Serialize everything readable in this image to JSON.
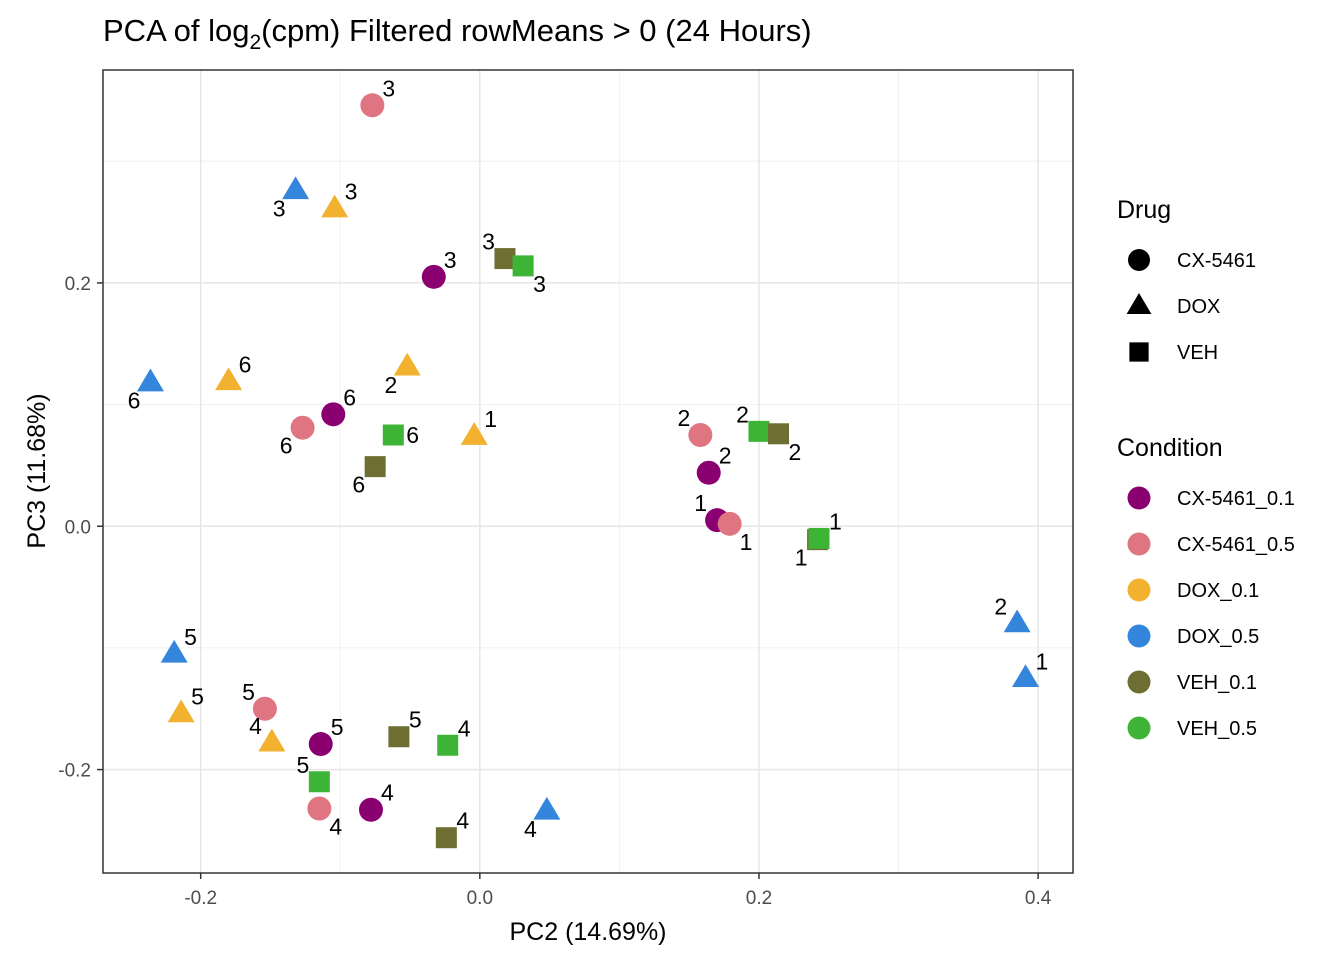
{
  "chart_data": {
    "type": "scatter",
    "title": {
      "main": "PCA of log",
      "sub": "2",
      "rest": "(cpm) Filtered rowMeans > 0 (24 Hours)"
    },
    "xlabel": "PC2 (14.69%)",
    "ylabel": "PC3 (11.68%)",
    "xlim": [
      -0.27,
      0.425
    ],
    "ylim": [
      -0.285,
      0.375
    ],
    "x_ticks": [
      -0.2,
      0.0,
      0.2,
      0.4
    ],
    "x_tick_labels": [
      "-0.2",
      "0.0",
      "0.2",
      "0.4"
    ],
    "y_ticks": [
      -0.2,
      0.0,
      0.2
    ],
    "y_tick_labels": [
      "-0.2",
      "0.0",
      "0.2"
    ],
    "x_minor": [
      -0.1,
      0.1,
      0.3
    ],
    "y_minor": [
      -0.1,
      0.1,
      0.3
    ],
    "grid": true,
    "legend_placement": "right",
    "drug_legend": {
      "title": "Drug",
      "items": [
        {
          "label": "CX-5461",
          "shape": "circle"
        },
        {
          "label": "DOX",
          "shape": "triangle"
        },
        {
          "label": "VEH",
          "shape": "square"
        }
      ]
    },
    "condition_legend": {
      "title": "Condition",
      "items": [
        {
          "label": "CX-5461_0.1",
          "color": "#8B0071"
        },
        {
          "label": "CX-5461_0.5",
          "color": "#E07582"
        },
        {
          "label": "DOX_0.1",
          "color": "#F2B12F"
        },
        {
          "label": "DOX_0.5",
          "color": "#3486DD"
        },
        {
          "label": "VEH_0.1",
          "color": "#6E6E33"
        },
        {
          "label": "VEH_0.5",
          "color": "#3DB436"
        }
      ]
    },
    "points": [
      {
        "x": -0.077,
        "y": 0.346,
        "drug": "CX-5461",
        "condition": "CX-5461_0.5",
        "label": "3",
        "pos": "ur"
      },
      {
        "x": -0.132,
        "y": 0.276,
        "drug": "DOX",
        "condition": "DOX_0.5",
        "label": "3",
        "pos": "ll"
      },
      {
        "x": -0.104,
        "y": 0.261,
        "drug": "DOX",
        "condition": "DOX_0.1",
        "label": "3",
        "pos": "ur"
      },
      {
        "x": -0.033,
        "y": 0.205,
        "drug": "CX-5461",
        "condition": "CX-5461_0.1",
        "label": "3",
        "pos": "ur"
      },
      {
        "x": 0.018,
        "y": 0.22,
        "drug": "VEH",
        "condition": "VEH_0.1",
        "label": "3",
        "pos": "ul"
      },
      {
        "x": 0.031,
        "y": 0.214,
        "drug": "VEH",
        "condition": "VEH_0.5",
        "label": "3",
        "pos": "lr"
      },
      {
        "x": -0.236,
        "y": 0.118,
        "drug": "DOX",
        "condition": "DOX_0.5",
        "label": "6",
        "pos": "ll"
      },
      {
        "x": -0.18,
        "y": 0.119,
        "drug": "DOX",
        "condition": "DOX_0.1",
        "label": "6",
        "pos": "ur"
      },
      {
        "x": -0.052,
        "y": 0.131,
        "drug": "DOX",
        "condition": "DOX_0.1",
        "label": "2",
        "pos": "ll"
      },
      {
        "x": -0.105,
        "y": 0.092,
        "drug": "CX-5461",
        "condition": "CX-5461_0.1",
        "label": "6",
        "pos": "ur"
      },
      {
        "x": -0.127,
        "y": 0.081,
        "drug": "CX-5461",
        "condition": "CX-5461_0.5",
        "label": "6",
        "pos": "ll"
      },
      {
        "x": -0.062,
        "y": 0.075,
        "drug": "VEH",
        "condition": "VEH_0.5",
        "label": "6",
        "pos": "r"
      },
      {
        "x": -0.075,
        "y": 0.049,
        "drug": "VEH",
        "condition": "VEH_0.1",
        "label": "6",
        "pos": "ll"
      },
      {
        "x": -0.004,
        "y": 0.074,
        "drug": "DOX",
        "condition": "DOX_0.1",
        "label": "1",
        "pos": "ur"
      },
      {
        "x": 0.158,
        "y": 0.075,
        "drug": "CX-5461",
        "condition": "CX-5461_0.5",
        "label": "2",
        "pos": "ul"
      },
      {
        "x": 0.2,
        "y": 0.078,
        "drug": "VEH",
        "condition": "VEH_0.5",
        "label": "2",
        "pos": "ul"
      },
      {
        "x": 0.214,
        "y": 0.076,
        "drug": "VEH",
        "condition": "VEH_0.1",
        "label": "2",
        "pos": "lr"
      },
      {
        "x": 0.164,
        "y": 0.044,
        "drug": "CX-5461",
        "condition": "CX-5461_0.1",
        "label": "2",
        "pos": "ur"
      },
      {
        "x": 0.17,
        "y": 0.005,
        "drug": "CX-5461",
        "condition": "CX-5461_0.1",
        "label": "1",
        "pos": "ul"
      },
      {
        "x": 0.179,
        "y": 0.002,
        "drug": "CX-5461",
        "condition": "CX-5461_0.5",
        "label": "1",
        "pos": "lr"
      },
      {
        "x": 0.242,
        "y": -0.011,
        "drug": "VEH",
        "condition": "VEH_0.1",
        "label": "1",
        "pos": "ll"
      },
      {
        "x": 0.243,
        "y": -0.01,
        "drug": "VEH",
        "condition": "VEH_0.5",
        "label": "1",
        "pos": "ur"
      },
      {
        "x": 0.385,
        "y": -0.08,
        "drug": "DOX",
        "condition": "DOX_0.5",
        "label": "2",
        "pos": "ul"
      },
      {
        "x": 0.391,
        "y": -0.125,
        "drug": "DOX",
        "condition": "DOX_0.5",
        "label": "1",
        "pos": "ur"
      },
      {
        "x": -0.219,
        "y": -0.105,
        "drug": "DOX",
        "condition": "DOX_0.5",
        "label": "5",
        "pos": "ur"
      },
      {
        "x": -0.214,
        "y": -0.154,
        "drug": "DOX",
        "condition": "DOX_0.1",
        "label": "5",
        "pos": "ur"
      },
      {
        "x": -0.154,
        "y": -0.15,
        "drug": "CX-5461",
        "condition": "CX-5461_0.5",
        "label": "5",
        "pos": "ul"
      },
      {
        "x": -0.149,
        "y": -0.178,
        "drug": "DOX",
        "condition": "DOX_0.1",
        "label": "4",
        "pos": "ul"
      },
      {
        "x": -0.114,
        "y": -0.179,
        "drug": "CX-5461",
        "condition": "CX-5461_0.1",
        "label": "5",
        "pos": "ur"
      },
      {
        "x": -0.058,
        "y": -0.173,
        "drug": "VEH",
        "condition": "VEH_0.1",
        "label": "5",
        "pos": "ur"
      },
      {
        "x": -0.023,
        "y": -0.18,
        "drug": "VEH",
        "condition": "VEH_0.5",
        "label": "4",
        "pos": "ur"
      },
      {
        "x": -0.115,
        "y": -0.21,
        "drug": "VEH",
        "condition": "VEH_0.5",
        "label": "5",
        "pos": "ul"
      },
      {
        "x": -0.115,
        "y": -0.232,
        "drug": "CX-5461",
        "condition": "CX-5461_0.5",
        "label": "4",
        "pos": "lr"
      },
      {
        "x": -0.078,
        "y": -0.233,
        "drug": "CX-5461",
        "condition": "CX-5461_0.1",
        "label": "4",
        "pos": "ur"
      },
      {
        "x": -0.024,
        "y": -0.256,
        "drug": "VEH",
        "condition": "VEH_0.1",
        "label": "4",
        "pos": "ur"
      },
      {
        "x": 0.048,
        "y": -0.234,
        "drug": "DOX",
        "condition": "DOX_0.5",
        "label": "4",
        "pos": "ll"
      }
    ]
  }
}
